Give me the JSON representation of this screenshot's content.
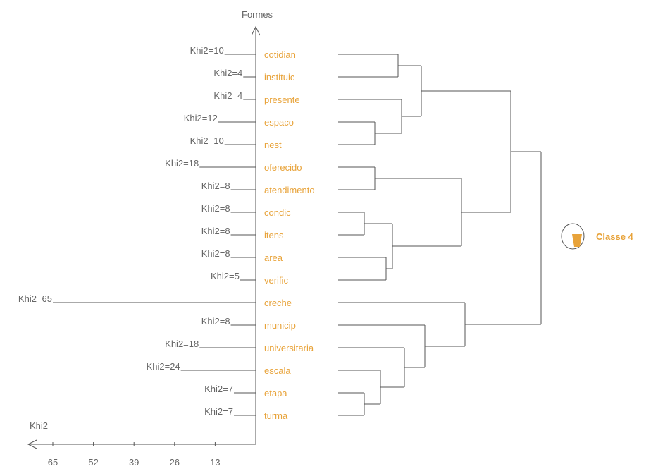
{
  "chart_data": {
    "type": "dendrogram",
    "y_axis_label": "Formes",
    "x_axis_label": "Khi2",
    "x_ticks": [
      65,
      52,
      39,
      26,
      13
    ],
    "xlim": [
      0,
      65
    ],
    "khi2_prefix": "Khi2=",
    "class_label": "Classe 4",
    "colors": {
      "word": "#e8a33a",
      "line": "#555555",
      "text": "#666666",
      "class": "#e8a33a"
    },
    "forms": [
      {
        "word": "cotidian",
        "khi2": 10
      },
      {
        "word": "instituic",
        "khi2": 4
      },
      {
        "word": "presente",
        "khi2": 4
      },
      {
        "word": "espaco",
        "khi2": 12
      },
      {
        "word": "nest",
        "khi2": 10
      },
      {
        "word": "oferecido",
        "khi2": 18
      },
      {
        "word": "atendimento",
        "khi2": 8
      },
      {
        "word": "condic",
        "khi2": 8
      },
      {
        "word": "itens",
        "khi2": 8
      },
      {
        "word": "area",
        "khi2": 8
      },
      {
        "word": "verific",
        "khi2": 5
      },
      {
        "word": "creche",
        "khi2": 65
      },
      {
        "word": "municip",
        "khi2": 8
      },
      {
        "word": "universitaria",
        "khi2": 18
      },
      {
        "word": "escala",
        "khi2": 24
      },
      {
        "word": "etapa",
        "khi2": 7
      },
      {
        "word": "turma",
        "khi2": 7
      }
    ]
  }
}
